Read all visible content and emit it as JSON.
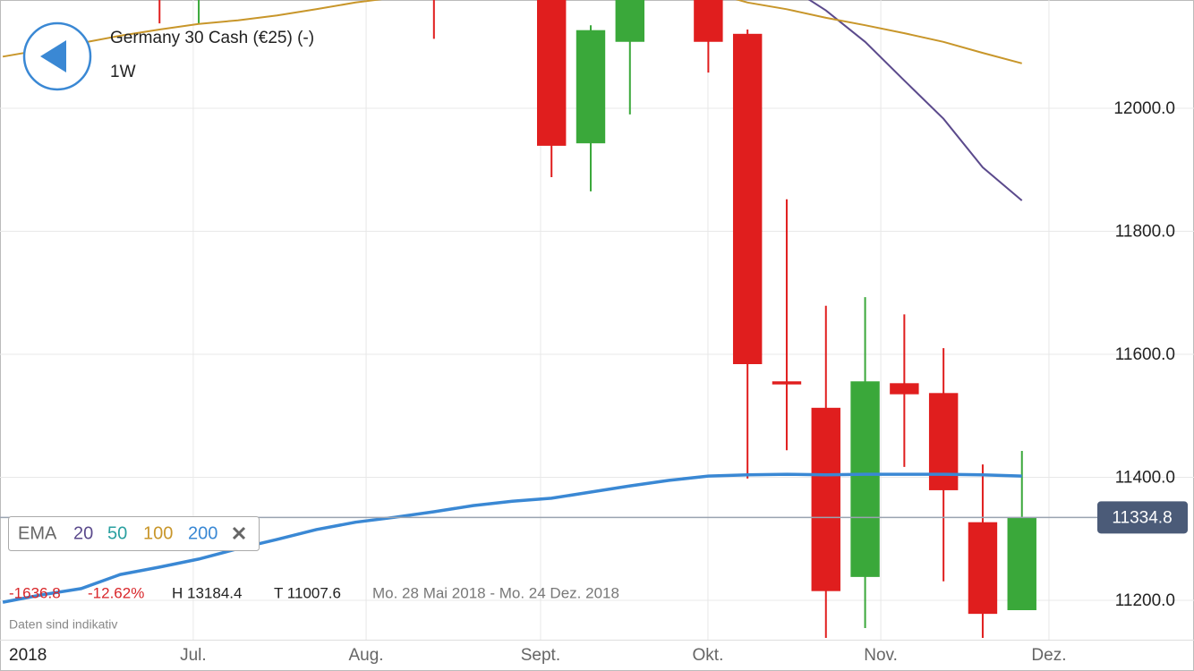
{
  "header": {
    "title": "Germany 30 Cash (€25) (-)",
    "timeframe": "1W"
  },
  "stats": {
    "change": "-1636.8",
    "change_pct": "-12.62%",
    "high": "H 13184.4",
    "low": "T 11007.6",
    "range": "Mo. 28 Mai 2018 - Mo. 24 Dez. 2018",
    "note": "Daten sind indikativ"
  },
  "chart_data": {
    "type": "candlestick",
    "categories": [
      null,
      null,
      null,
      null,
      null,
      null,
      null,
      null,
      null,
      null,
      null,
      null,
      null,
      null,
      null,
      null,
      null,
      null,
      null,
      null,
      null,
      null,
      null,
      null,
      null,
      null,
      null
    ],
    "open": [
      null,
      null,
      null,
      null,
      12260,
      12200,
      null,
      null,
      null,
      null,
      null,
      12260,
      null,
      null,
      12200,
      11943,
      12108,
      null,
      12230,
      12121,
      11556,
      11513,
      11238,
      11553,
      11537,
      11327,
      11184
    ],
    "high": [
      null,
      null,
      null,
      null,
      12300,
      12300,
      null,
      null,
      null,
      null,
      null,
      12300,
      null,
      null,
      12260,
      12135,
      12260,
      null,
      12280,
      12128,
      11852,
      11679,
      11693,
      11665,
      11610,
      11421,
      11443
    ],
    "low": [
      null,
      null,
      null,
      null,
      12138,
      12138,
      null,
      null,
      null,
      null,
      null,
      12113,
      null,
      null,
      11888,
      11865,
      11990,
      null,
      12058,
      11398,
      11444,
      11139,
      11155,
      11417,
      11231,
      11139,
      11184
    ],
    "close": [
      null,
      null,
      null,
      null,
      12200,
      12260,
      null,
      null,
      null,
      null,
      null,
      12200,
      null,
      null,
      11939,
      12127,
      12220,
      null,
      12108,
      11584,
      11551,
      11215,
      11556,
      11535,
      11379,
      11178,
      11335
    ],
    "up_color": "#3aa83a",
    "down_color": "#e01e1e",
    "series": [
      {
        "name": "20",
        "color": "#5b4a8c",
        "values": [
          null,
          null,
          null,
          null,
          null,
          null,
          null,
          null,
          null,
          null,
          null,
          null,
          null,
          null,
          null,
          null,
          null,
          null,
          null,
          null,
          12200,
          12159,
          12108,
          12045,
          11983,
          11904,
          11850
        ]
      },
      {
        "name": "100",
        "color": "#c8962a",
        "values": [
          12084,
          12095,
          12106,
          12118,
          12128,
          12137,
          12143,
          12151,
          12161,
          12172,
          12180,
          12188,
          12195,
          12200,
          12205,
          12210,
          12205,
          12200,
          12190,
          12172,
          12161,
          12147,
          12135,
          12122,
          12108,
          12090,
          12073
        ]
      },
      {
        "name": "200",
        "color": "#3a88d4",
        "values": [
          11197,
          11209,
          11219,
          11242,
          11254,
          11267,
          11284,
          11299,
          11315,
          11327,
          11335,
          11344,
          11354,
          11361,
          11366,
          11376,
          11386,
          11395,
          11402,
          11404,
          11405,
          11404,
          11405,
          11405,
          11405,
          11404,
          11402
        ]
      }
    ],
    "legend": {
      "title": "EMA",
      "items": [
        {
          "name": "20",
          "color": "#5b4a8c"
        },
        {
          "name": "50",
          "color": "#2aa0a0"
        },
        {
          "name": "100",
          "color": "#c8962a"
        },
        {
          "name": "200",
          "color": "#3a88d4"
        }
      ]
    },
    "ylim": [
      11136,
      12176
    ],
    "yticks": [
      {
        "value": 11200,
        "label": "11200.0"
      },
      {
        "value": 11400,
        "label": "11400.0"
      },
      {
        "value": 11600,
        "label": "11600.0"
      },
      {
        "value": 11800,
        "label": "11800.0"
      },
      {
        "value": 12000,
        "label": "12000.0"
      }
    ],
    "xlim": [
      -0.07,
      30.39
    ],
    "xticks": [
      {
        "value": 4.86,
        "label": "Jul."
      },
      {
        "value": 9.27,
        "label": "Aug."
      },
      {
        "value": 13.72,
        "label": "Sept."
      },
      {
        "value": 17.99,
        "label": "Okt."
      },
      {
        "value": 22.4,
        "label": "Nov."
      },
      {
        "value": 26.69,
        "label": "Dez."
      }
    ],
    "year_label": "2018",
    "last_price": {
      "value": 11334.8,
      "label": "11334.8"
    },
    "grid": true
  }
}
